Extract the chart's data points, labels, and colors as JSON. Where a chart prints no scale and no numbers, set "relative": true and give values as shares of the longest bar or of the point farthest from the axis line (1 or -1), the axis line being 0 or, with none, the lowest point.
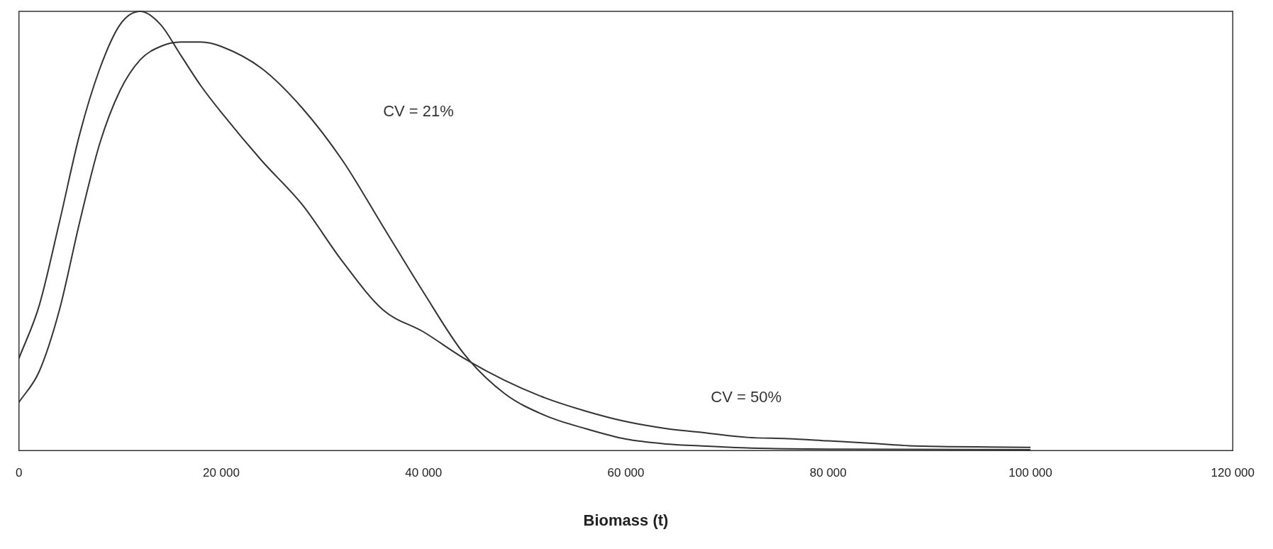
{
  "chart_data": {
    "type": "line",
    "relative": true,
    "xlabel": "Biomass (t)",
    "xlim": [
      0,
      120000
    ],
    "xticks": [
      {
        "value": 0,
        "label": "0"
      },
      {
        "value": 20000,
        "label": "20 000"
      },
      {
        "value": 40000,
        "label": "40 000"
      },
      {
        "value": 60000,
        "label": "60 000"
      },
      {
        "value": 80000,
        "label": "80 000"
      },
      {
        "value": 100000,
        "label": "100 000"
      },
      {
        "value": 120000,
        "label": "120 000"
      }
    ],
    "grid": false,
    "legend": false,
    "marker": "none",
    "line_style": "solid",
    "annotations": [
      "CV = 21%",
      "CV = 50%"
    ],
    "series": [
      {
        "color": "#333333",
        "x": [
          0,
          2000,
          4000,
          6000,
          8000,
          10000,
          12000,
          14000,
          16000,
          18000,
          20000,
          24000,
          28000,
          32000,
          36000,
          40000,
          44000,
          48000,
          52000,
          56000,
          60000,
          64000,
          68000,
          72000,
          76000,
          80000,
          84000,
          88000,
          92000,
          96000,
          100000
        ],
        "values": [
          0.21,
          0.33,
          0.52,
          0.72,
          0.87,
          0.97,
          1,
          0.97,
          0.9,
          0.83,
          0.77,
          0.66,
          0.56,
          0.43,
          0.32,
          0.27,
          0.21,
          0.16,
          0.12,
          0.09,
          0.066,
          0.05,
          0.04,
          0.03,
          0.027,
          0.022,
          0.017,
          0.011,
          0.009,
          0.008,
          0.007
        ]
      },
      {
        "color": "#333333",
        "x": [
          0,
          2000,
          4000,
          6000,
          8000,
          10000,
          12000,
          14000,
          16000,
          18000,
          20000,
          24000,
          28000,
          32000,
          36000,
          40000,
          44000,
          48000,
          52000,
          56000,
          60000,
          64000,
          68000,
          72000,
          76000,
          80000,
          100000
        ],
        "values": [
          0.11,
          0.18,
          0.32,
          0.52,
          0.7,
          0.82,
          0.89,
          0.92,
          0.93,
          0.93,
          0.92,
          0.87,
          0.78,
          0.66,
          0.51,
          0.36,
          0.22,
          0.13,
          0.08,
          0.05,
          0.026,
          0.015,
          0.01,
          0.006,
          0.004,
          0.003,
          0.002
        ]
      }
    ]
  }
}
